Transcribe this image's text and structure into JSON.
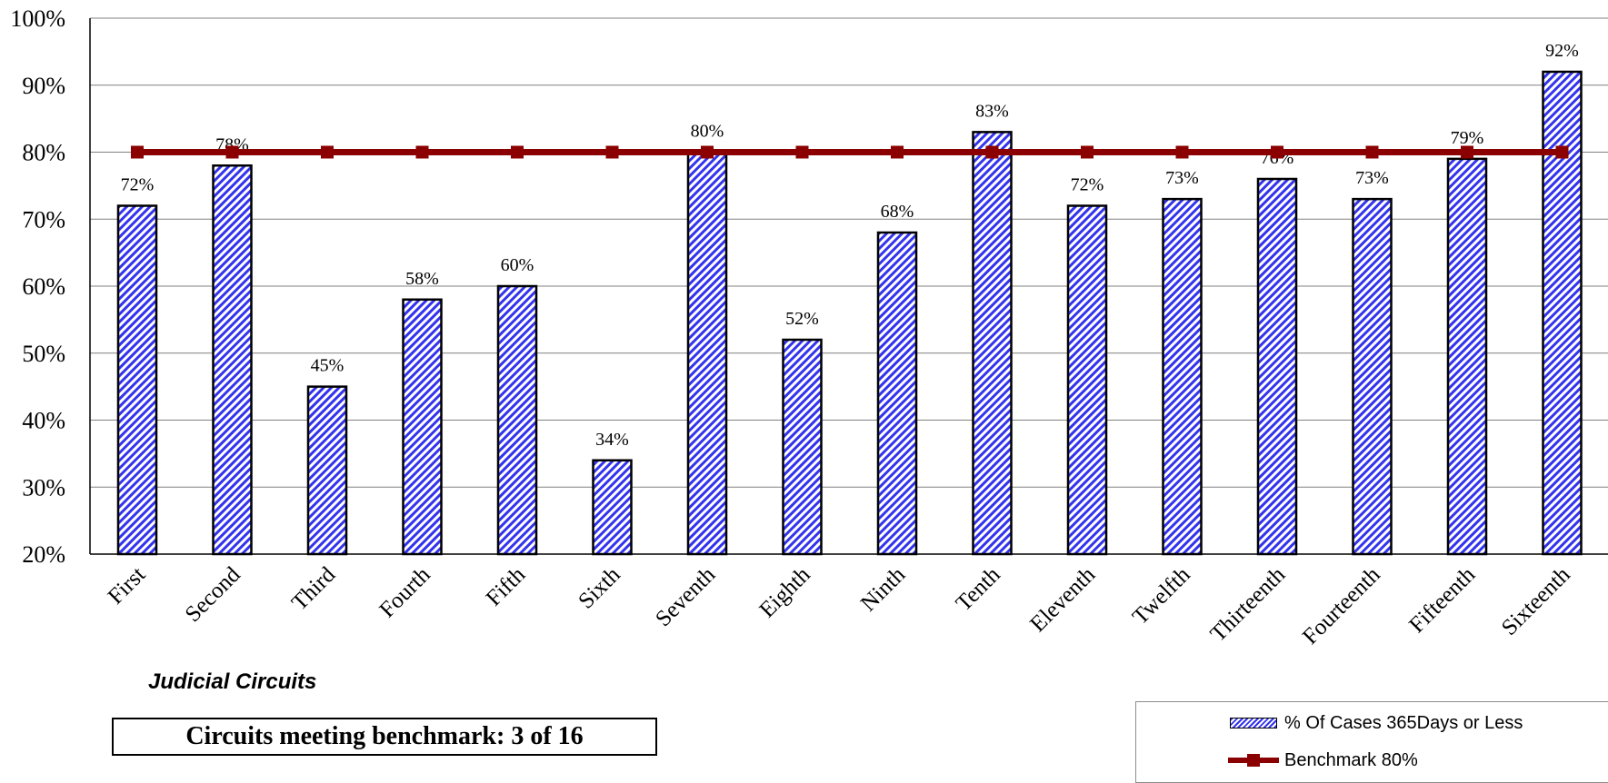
{
  "chart_data": {
    "type": "bar",
    "categories": [
      "First",
      "Second",
      "Third",
      "Fourth",
      "Fifth",
      "Sixth",
      "Seventh",
      "Eighth",
      "Ninth",
      "Tenth",
      "Eleventh",
      "Twelfth",
      "Thirteenth",
      "Fourteenth",
      "Fifteenth",
      "Sixteenth"
    ],
    "series": [
      {
        "name": "% Of Cases 365Days or Less",
        "type": "bar",
        "values": [
          72,
          78,
          45,
          58,
          60,
          34,
          80,
          52,
          68,
          83,
          72,
          73,
          76,
          73,
          79,
          92
        ],
        "data_labels": [
          "72%",
          "78%",
          "45%",
          "58%",
          "60%",
          "34%",
          "80%",
          "52%",
          "68%",
          "83%",
          "72%",
          "73%",
          "76%",
          "73%",
          "79%",
          "92%"
        ],
        "color": "#3333ee",
        "pattern": "diagonal-hatch"
      },
      {
        "name": "Benchmark 80%",
        "type": "line",
        "values": [
          80,
          80,
          80,
          80,
          80,
          80,
          80,
          80,
          80,
          80,
          80,
          80,
          80,
          80,
          80,
          80
        ],
        "color": "#8b0000",
        "marker": "square"
      }
    ],
    "xlabel": "Judicial Circuits",
    "ylabel": "",
    "ylim": [
      20,
      100
    ],
    "yticks": [
      "20%",
      "30%",
      "40%",
      "50%",
      "60%",
      "70%",
      "80%",
      "90%",
      "100%"
    ],
    "grid": true,
    "legend_position": "bottom-right"
  },
  "annotation": {
    "benchmark_summary": "Circuits meeting benchmark: 3 of 16"
  },
  "legend": {
    "bar_label": "% Of Cases 365Days or Less",
    "line_label": "Benchmark 80%"
  }
}
